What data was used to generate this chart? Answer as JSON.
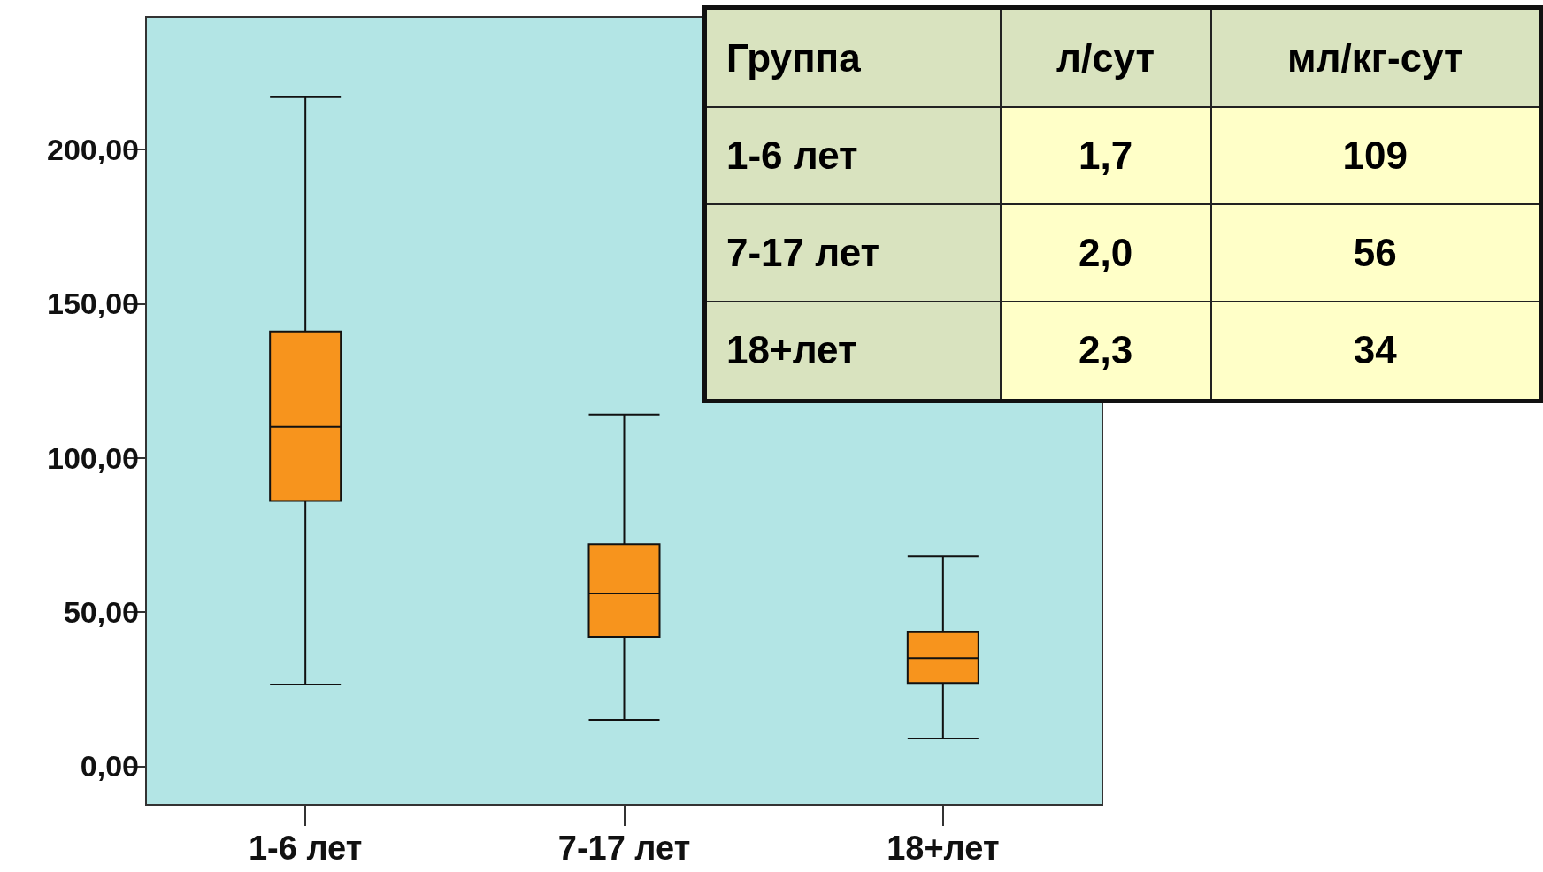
{
  "chart_data": [
    {
      "type": "box",
      "categories": [
        "1-6 лет",
        "7-17 лет",
        "18+лет"
      ],
      "color": "#f7941d",
      "boxes": [
        {
          "low": 26.5,
          "q1": 86,
          "q3": 141,
          "median": 110,
          "high": 217
        },
        {
          "low": 15,
          "q1": 42,
          "median": 56,
          "q3": 72,
          "high": 114
        },
        {
          "low": 9,
          "q1": 27,
          "median": 35,
          "q3": 43.5,
          "high": 68
        }
      ],
      "ylim": [
        -12.5,
        243
      ],
      "yticks": [
        {
          "value": 0,
          "label": "0,00"
        },
        {
          "value": 50,
          "label": "50,00"
        },
        {
          "value": 100,
          "label": "100,00"
        },
        {
          "value": 150,
          "label": "150,00"
        },
        {
          "value": 200,
          "label": "200,00"
        }
      ],
      "grid": false
    },
    {
      "type": "other",
      "annotations": [
        "Группа",
        "л/сут",
        "мл/кг-сут",
        "1-6 лет",
        "1,7",
        "109",
        "7-17 лет",
        "2,0",
        "56",
        "18+лет",
        "2,3",
        "34"
      ]
    }
  ]
}
